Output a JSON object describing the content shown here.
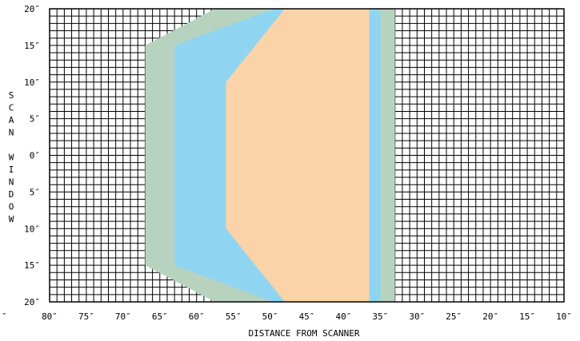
{
  "chart_data": {
    "type": "area",
    "title": "",
    "xlabel": "DISTANCE FROM SCANNER",
    "ylabel": "SCAN WINDOW",
    "xlim": [
      80,
      10
    ],
    "ylim": [
      -20,
      20
    ],
    "x_ticks": [
      80,
      75,
      70,
      65,
      60,
      55,
      50,
      45,
      40,
      35,
      30,
      25,
      20,
      15,
      10
    ],
    "x_tick_labels": [
      "80″",
      "75″",
      "70″",
      "65″",
      "60″",
      "55″",
      "50″",
      "45″",
      "40″",
      "35″",
      "30″",
      "25″",
      "20″",
      "15″",
      "10″"
    ],
    "y_ticks": [
      20,
      15,
      10,
      5,
      0,
      -5,
      -10,
      -15,
      -20
    ],
    "y_tick_labels": [
      "20″",
      "15″",
      "10″",
      "5″",
      "0″",
      "5″",
      "10″",
      "15″",
      "20″"
    ],
    "stray_label": "″",
    "grid": true,
    "grid_minor_step": 1,
    "regions": [
      {
        "color": "#b7d3bf",
        "points": [
          [
            33,
            20
          ],
          [
            57.5,
            20
          ],
          [
            67,
            15
          ],
          [
            67,
            -15
          ],
          [
            57.5,
            -20
          ],
          [
            33,
            -20
          ]
        ]
      },
      {
        "color": "#8fd5f1",
        "points": [
          [
            35,
            20
          ],
          [
            49.5,
            20
          ],
          [
            63,
            15
          ],
          [
            63,
            -15
          ],
          [
            49.5,
            -20
          ],
          [
            35,
            -20
          ]
        ]
      },
      {
        "color": "#fbd3a9",
        "points": [
          [
            36.5,
            20
          ],
          [
            48,
            20
          ],
          [
            56,
            10
          ],
          [
            56,
            -10
          ],
          [
            48,
            -20
          ],
          [
            36.5,
            -20
          ]
        ]
      }
    ]
  }
}
